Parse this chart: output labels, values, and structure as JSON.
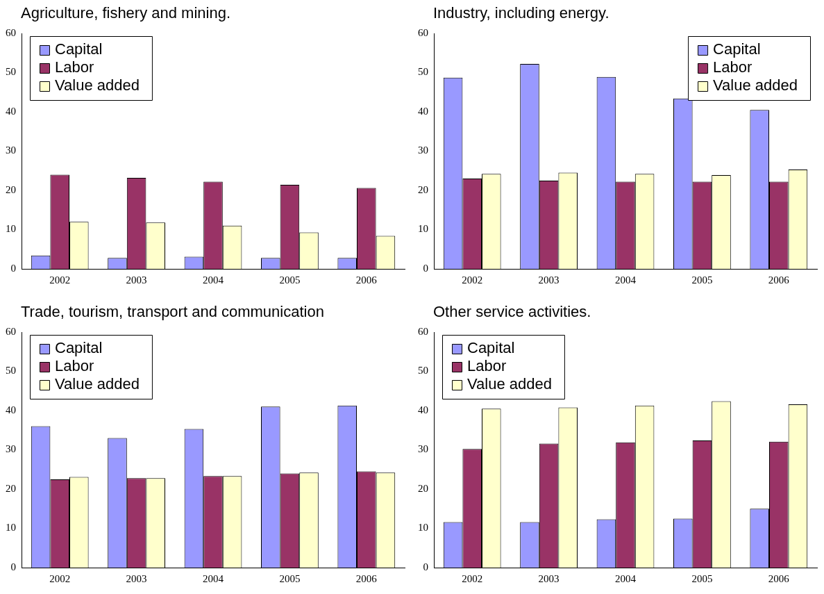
{
  "chart_data": [
    {
      "type": "bar",
      "title": "Agriculture, fishery and mining.",
      "categories": [
        "2002",
        "2003",
        "2004",
        "2005",
        "2006"
      ],
      "ylim": [
        0,
        60
      ],
      "yticks": [
        0,
        10,
        20,
        30,
        40,
        50,
        60
      ],
      "grid": false,
      "legend": "top left",
      "series": [
        {
          "name": "Capital",
          "color": "#9999ff",
          "values": [
            3.4,
            2.8,
            3.1,
            2.8,
            2.8
          ]
        },
        {
          "name": "Labor",
          "color": "#993366",
          "values": [
            24,
            23.2,
            22.2,
            21.4,
            20.6
          ]
        },
        {
          "name": "Value added",
          "color": "#ffffcc",
          "values": [
            12,
            11.8,
            11,
            9.3,
            8.4
          ]
        }
      ]
    },
    {
      "type": "bar",
      "title": "Industry, including energy.",
      "categories": [
        "2002",
        "2003",
        "2004",
        "2005",
        "2006"
      ],
      "ylim": [
        0,
        60
      ],
      "yticks": [
        0,
        10,
        20,
        30,
        40,
        50,
        60
      ],
      "grid": false,
      "legend": "top right",
      "series": [
        {
          "name": "Capital",
          "color": "#9999ff",
          "values": [
            48.7,
            52.2,
            48.9,
            43.4,
            40.5
          ]
        },
        {
          "name": "Labor",
          "color": "#993366",
          "values": [
            23,
            22.5,
            22.2,
            22.2,
            22.2
          ]
        },
        {
          "name": "Value added",
          "color": "#ffffcc",
          "values": [
            24.2,
            24.5,
            24.2,
            23.9,
            25.3
          ]
        }
      ]
    },
    {
      "type": "bar",
      "title": "Trade, tourism, transport and communication",
      "categories": [
        "2002",
        "2003",
        "2004",
        "2005",
        "2006"
      ],
      "ylim": [
        0,
        60
      ],
      "yticks": [
        0,
        10,
        20,
        30,
        40,
        50,
        60
      ],
      "grid": false,
      "legend": "top left",
      "series": [
        {
          "name": "Capital",
          "color": "#9999ff",
          "values": [
            36,
            33,
            35.3,
            41,
            41.3
          ]
        },
        {
          "name": "Labor",
          "color": "#993366",
          "values": [
            22.5,
            22.8,
            23.3,
            24,
            24.5
          ]
        },
        {
          "name": "Value added",
          "color": "#ffffcc",
          "values": [
            23.1,
            22.8,
            23.3,
            24.2,
            24.2
          ]
        }
      ]
    },
    {
      "type": "bar",
      "title": "Other service activities.",
      "categories": [
        "2002",
        "2003",
        "2004",
        "2005",
        "2006"
      ],
      "ylim": [
        0,
        60
      ],
      "yticks": [
        0,
        10,
        20,
        30,
        40,
        50,
        60
      ],
      "grid": false,
      "legend": "top left",
      "series": [
        {
          "name": "Capital",
          "color": "#9999ff",
          "values": [
            11.6,
            11.6,
            12.3,
            12.5,
            15
          ]
        },
        {
          "name": "Labor",
          "color": "#993366",
          "values": [
            30.2,
            31.6,
            31.9,
            32.4,
            32.1
          ]
        },
        {
          "name": "Value added",
          "color": "#ffffcc",
          "values": [
            40.5,
            40.8,
            41.3,
            42.4,
            41.6
          ]
        }
      ]
    }
  ]
}
